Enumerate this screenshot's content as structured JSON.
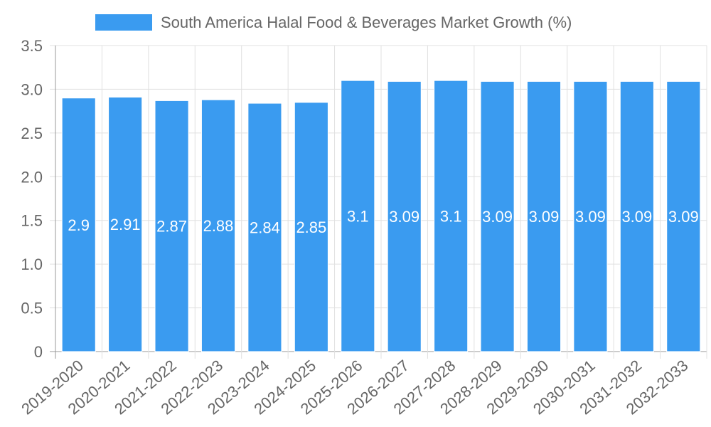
{
  "chart_data": {
    "type": "bar",
    "title": "",
    "xlabel": "",
    "ylabel": "",
    "legend": {
      "position": "top",
      "entries": [
        "South America Halal Food & Beverages Market Growth (%)"
      ]
    },
    "categories": [
      "2019-2020",
      "2020-2021",
      "2021-2022",
      "2022-2023",
      "2023-2024",
      "2024-2025",
      "2025-2026",
      "2026-2027",
      "2027-2028",
      "2028-2029",
      "2029-2030",
      "2030-2031",
      "2031-2032",
      "2032-2033"
    ],
    "series": [
      {
        "name": "South America Halal Food & Beverages Market Growth (%)",
        "color": "#3a9bf0",
        "values": [
          2.9,
          2.91,
          2.87,
          2.88,
          2.84,
          2.85,
          3.1,
          3.09,
          3.1,
          3.09,
          3.09,
          3.09,
          3.09,
          3.09
        ]
      }
    ],
    "ylim": [
      0,
      3.5
    ],
    "yticks": [
      0,
      0.5,
      1.0,
      1.5,
      2.0,
      2.5,
      3.0,
      3.5
    ],
    "ytick_labels": [
      "0",
      "0.5",
      "1.0",
      "1.5",
      "2.0",
      "2.5",
      "3.0",
      "3.5"
    ],
    "grid": true,
    "data_labels": true
  }
}
